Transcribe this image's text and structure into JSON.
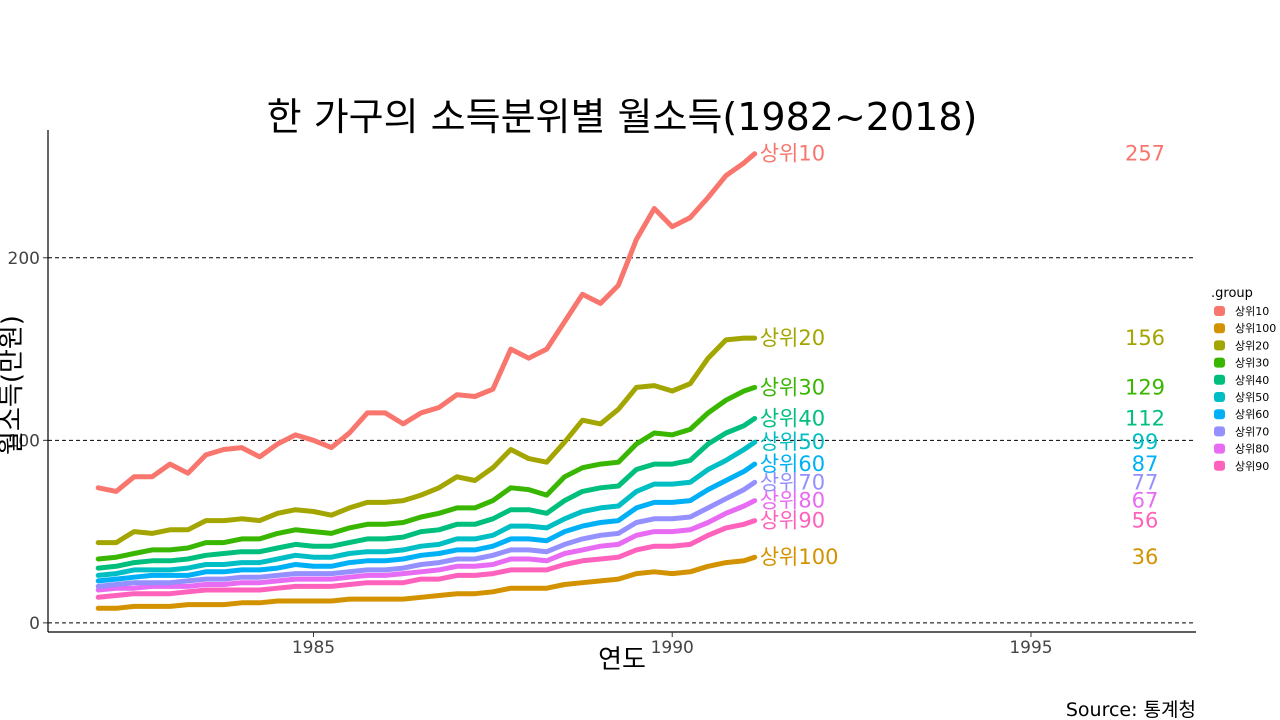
{
  "chart_data": {
    "type": "line",
    "title": "한 가구의 소득분위별 월소득(1982~2018)",
    "xlabel": "연도",
    "ylabel": "월소득(만원)",
    "source": "Source: 통계청",
    "xlim": [
      1981.3,
      1997.3
    ],
    "ylim": [
      -5,
      270
    ],
    "x_ticks": [
      1985,
      1990,
      1995
    ],
    "y_ticks": [
      0,
      100,
      200
    ],
    "y_tick_labels": [
      "0",
      "100",
      "200"
    ],
    "gridlines": "horizontal-dashed",
    "legend_title": ".group",
    "legend_position": "right",
    "legend_order": [
      "상위10",
      "상위100",
      "상위20",
      "상위30",
      "상위40",
      "상위50",
      "상위60",
      "상위70",
      "상위80",
      "상위90"
    ],
    "x": [
      1982.0,
      1982.25,
      1982.5,
      1982.75,
      1983.0,
      1983.25,
      1983.5,
      1983.75,
      1984.0,
      1984.25,
      1984.5,
      1984.75,
      1985.0,
      1985.25,
      1985.5,
      1985.75,
      1986.0,
      1986.25,
      1986.5,
      1986.75,
      1987.0,
      1987.25,
      1987.5,
      1987.75,
      1988.0,
      1988.25,
      1988.5,
      1988.75,
      1989.0,
      1989.25,
      1989.5,
      1989.75,
      1990.0,
      1990.25,
      1990.5,
      1990.75,
      1991.0,
      1991.15
    ],
    "series": [
      {
        "name": "상위10",
        "color": "#F8766D",
        "end_value": "257",
        "values": [
          74,
          72,
          80,
          80,
          87,
          82,
          92,
          95,
          96,
          91,
          98,
          103,
          100,
          96,
          104,
          115,
          115,
          109,
          115,
          118,
          125,
          124,
          128,
          150,
          145,
          150,
          165,
          180,
          175,
          185,
          210,
          227,
          217,
          222,
          233,
          245,
          252,
          257
        ]
      },
      {
        "name": "상위20",
        "color": "#A3A500",
        "end_value": "156",
        "values": [
          44,
          44,
          50,
          49,
          51,
          51,
          56,
          56,
          57,
          56,
          60,
          62,
          61,
          59,
          63,
          66,
          66,
          67,
          70,
          74,
          80,
          78,
          85,
          95,
          90,
          88,
          99,
          111,
          109,
          117,
          129,
          130,
          127,
          131,
          145,
          155,
          156,
          156
        ]
      },
      {
        "name": "상위30",
        "color": "#39B600",
        "end_value": "129",
        "values": [
          35,
          36,
          38,
          40,
          40,
          41,
          44,
          44,
          46,
          46,
          49,
          51,
          50,
          49,
          52,
          54,
          54,
          55,
          58,
          60,
          63,
          63,
          67,
          74,
          73,
          70,
          80,
          85,
          87,
          88,
          98,
          104,
          103,
          106,
          115,
          122,
          127,
          129
        ]
      },
      {
        "name": "상위40",
        "color": "#00BF7D",
        "end_value": "112",
        "values": [
          30,
          31,
          33,
          34,
          34,
          35,
          37,
          38,
          39,
          39,
          41,
          43,
          42,
          42,
          44,
          46,
          46,
          47,
          50,
          51,
          54,
          54,
          57,
          62,
          62,
          60,
          67,
          72,
          74,
          75,
          84,
          87,
          87,
          89,
          98,
          104,
          108,
          112
        ]
      },
      {
        "name": "상위50",
        "color": "#00BFC4",
        "end_value": "99",
        "values": [
          26,
          27,
          29,
          29,
          29,
          30,
          32,
          32,
          33,
          33,
          35,
          37,
          36,
          36,
          38,
          39,
          39,
          40,
          42,
          43,
          46,
          46,
          48,
          53,
          53,
          52,
          57,
          61,
          63,
          64,
          72,
          76,
          76,
          77,
          84,
          89,
          95,
          99
        ]
      },
      {
        "name": "상위60",
        "color": "#00B0F6",
        "end_value": "87",
        "values": [
          23,
          24,
          25,
          26,
          26,
          26,
          28,
          28,
          29,
          29,
          30,
          32,
          31,
          31,
          33,
          34,
          34,
          35,
          37,
          38,
          40,
          40,
          42,
          46,
          46,
          45,
          50,
          53,
          55,
          56,
          63,
          66,
          66,
          67,
          73,
          78,
          83,
          87
        ]
      },
      {
        "name": "상위70",
        "color": "#9590FF",
        "end_value": "77",
        "values": [
          20,
          21,
          22,
          22,
          22,
          23,
          24,
          24,
          25,
          25,
          26,
          27,
          27,
          27,
          28,
          29,
          29,
          30,
          32,
          33,
          35,
          35,
          37,
          40,
          40,
          39,
          43,
          46,
          48,
          49,
          55,
          57,
          57,
          58,
          63,
          68,
          73,
          77
        ]
      },
      {
        "name": "상위80",
        "color": "#E76BF3",
        "end_value": "67",
        "values": [
          18,
          19,
          19,
          20,
          20,
          20,
          21,
          21,
          22,
          22,
          23,
          24,
          24,
          24,
          25,
          26,
          26,
          27,
          28,
          29,
          31,
          31,
          32,
          35,
          35,
          34,
          38,
          40,
          42,
          43,
          48,
          50,
          50,
          51,
          55,
          60,
          64,
          67
        ]
      },
      {
        "name": "상위90",
        "color": "#FF62BC",
        "end_value": "56",
        "values": [
          14,
          15,
          16,
          16,
          16,
          17,
          18,
          18,
          18,
          18,
          19,
          20,
          20,
          20,
          21,
          22,
          22,
          22,
          24,
          24,
          26,
          26,
          27,
          29,
          29,
          29,
          32,
          34,
          35,
          36,
          40,
          42,
          42,
          43,
          48,
          52,
          54,
          56
        ]
      },
      {
        "name": "상위100",
        "color": "#D39200",
        "end_value": "36",
        "values": [
          8,
          8,
          9,
          9,
          9,
          10,
          10,
          10,
          11,
          11,
          12,
          12,
          12,
          12,
          13,
          13,
          13,
          13,
          14,
          15,
          16,
          16,
          17,
          19,
          19,
          19,
          21,
          22,
          23,
          24,
          27,
          28,
          27,
          28,
          31,
          33,
          34,
          36
        ]
      }
    ]
  }
}
